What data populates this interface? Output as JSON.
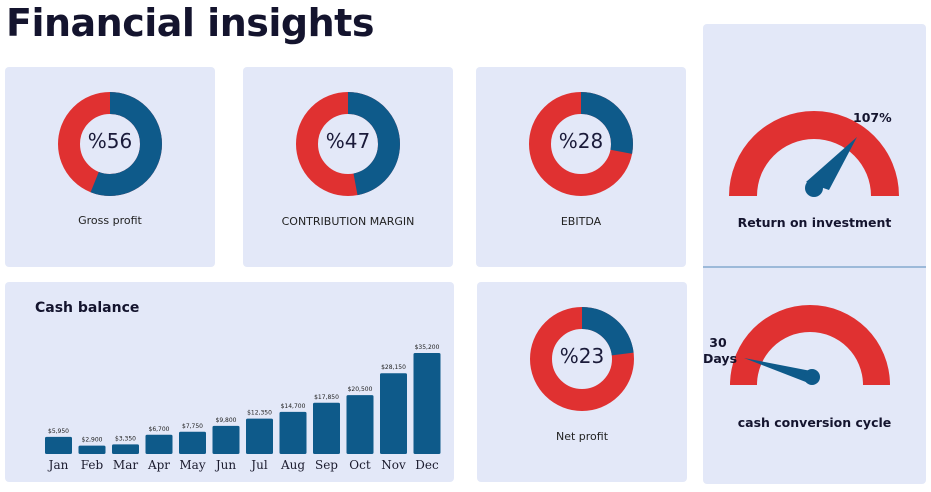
{
  "page": {
    "title": "Financial insights"
  },
  "colors": {
    "blue": "#0e5a8a",
    "red": "#e03131",
    "card": "#e3e8f8",
    "text": "#14142e"
  },
  "metrics": [
    {
      "key": "gross",
      "label": "Gross profit",
      "value": 56,
      "display": "%56"
    },
    {
      "key": "contribution",
      "label": "CONTRIBUTION MARGIN",
      "value": 47,
      "display": "%47"
    },
    {
      "key": "ebitda",
      "label": "EBITDA",
      "value": 28,
      "display": "%28"
    },
    {
      "key": "net",
      "label": "Net profit",
      "value": 23,
      "display": "%23"
    }
  ],
  "gauges": {
    "roi": {
      "title": "Return on investment",
      "value": 107,
      "display": "107%"
    },
    "ccc": {
      "title": "cash conversion cycle",
      "value_line1": "30",
      "value_line2": "Days"
    }
  },
  "chart_data": {
    "type": "bar",
    "title": "Cash balance",
    "categories": [
      "Jan",
      "Feb",
      "Mar",
      "Apr",
      "May",
      "Jun",
      "Jul",
      "Aug",
      "Sep",
      "Oct",
      "Nov",
      "Dec"
    ],
    "values": [
      5950,
      2900,
      3350,
      6700,
      7750,
      9800,
      12350,
      14700,
      17850,
      20500,
      28150,
      35200
    ],
    "labels": [
      "$5,950",
      "$2,900",
      "$3,350",
      "$6,700",
      "$7,750",
      "$9,800",
      "$12,350",
      "$14,700",
      "$17,850",
      "$20,500",
      "$28,150",
      "$35,200"
    ],
    "xlabel": "",
    "ylabel": "",
    "ylim": [
      0,
      35200
    ]
  }
}
